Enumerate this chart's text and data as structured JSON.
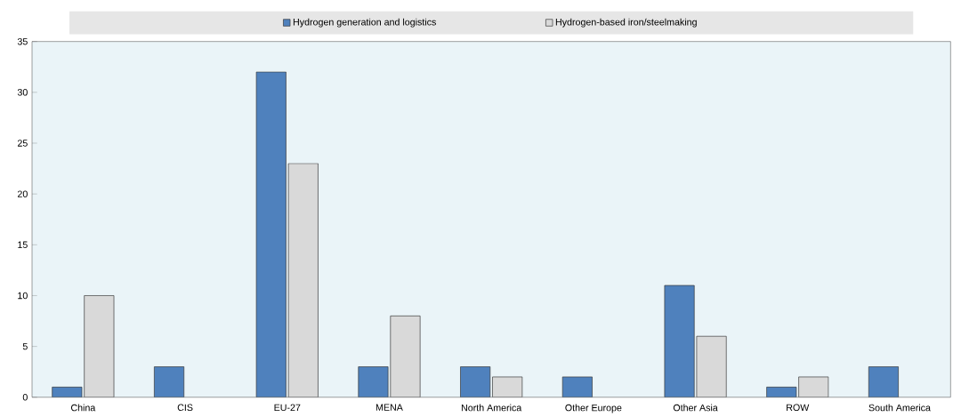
{
  "chart_data": {
    "type": "bar",
    "categories": [
      "China",
      "CIS",
      "EU-27",
      "MENA",
      "North America",
      "Other Europe",
      "Other Asia",
      "ROW",
      "South America"
    ],
    "series": [
      {
        "name": "Hydrogen generation and logistics",
        "color": "#4f81bd",
        "values": [
          1,
          3,
          32,
          3,
          3,
          2,
          11,
          1,
          3
        ]
      },
      {
        "name": "Hydrogen-based iron/steelmaking",
        "color": "#d9d9d9",
        "values": [
          10,
          null,
          23,
          8,
          2,
          null,
          6,
          2,
          null
        ]
      }
    ],
    "ylim": [
      0,
      35
    ],
    "yticks": [
      0,
      5,
      10,
      15,
      20,
      25,
      30,
      35
    ],
    "grid": false,
    "legend": "top"
  }
}
